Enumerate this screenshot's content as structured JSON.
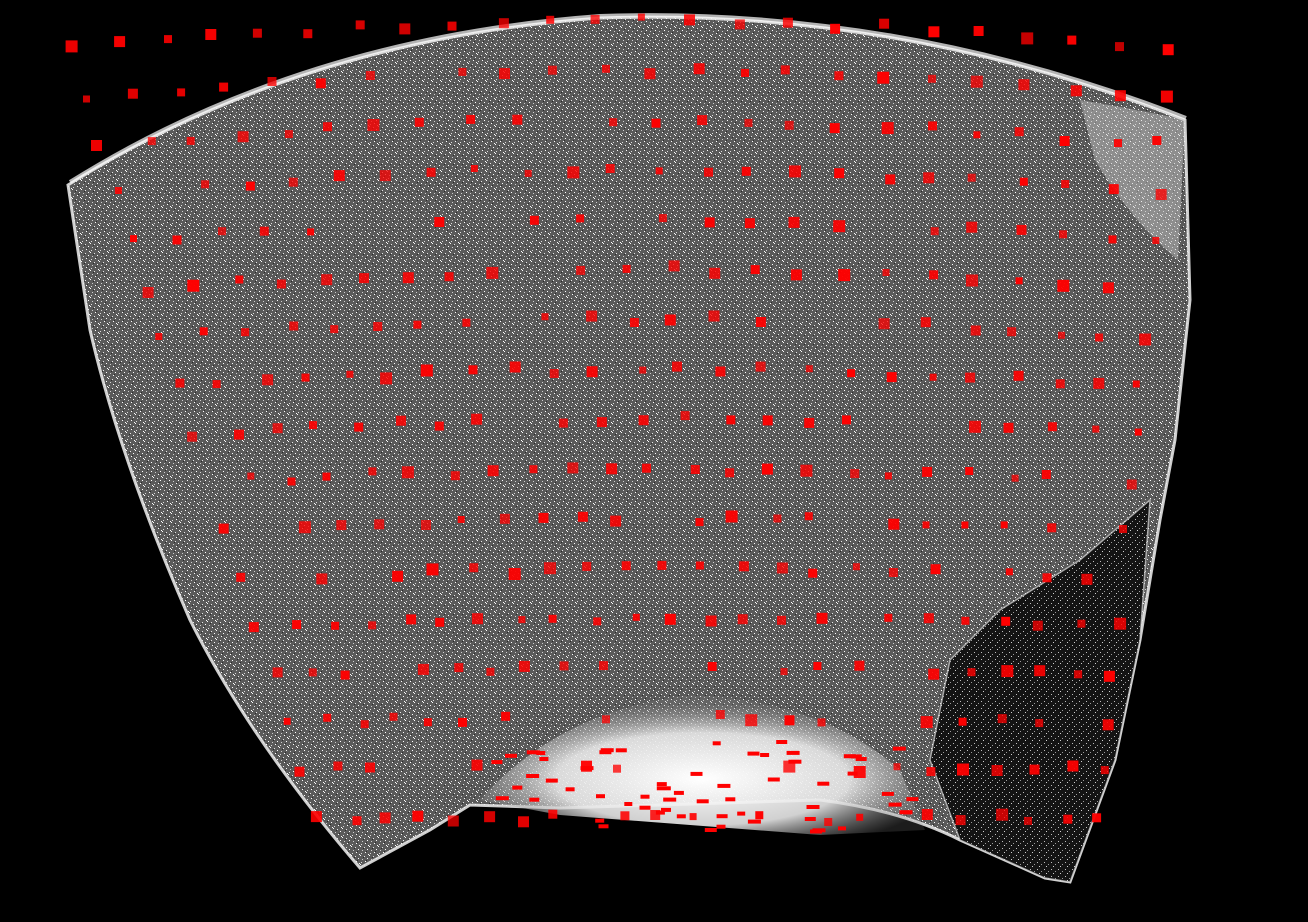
{
  "scene": {
    "background_color": "#000000",
    "point_cloud_color": "#ffffff",
    "keypoint_color": "#ff0000",
    "surface_shading": "#8c8c8c",
    "dark_region_shading": "#1c1c1c",
    "keypoint_marker": "square",
    "icons": [
      "point-cloud-surface",
      "keypoint-marker"
    ]
  }
}
